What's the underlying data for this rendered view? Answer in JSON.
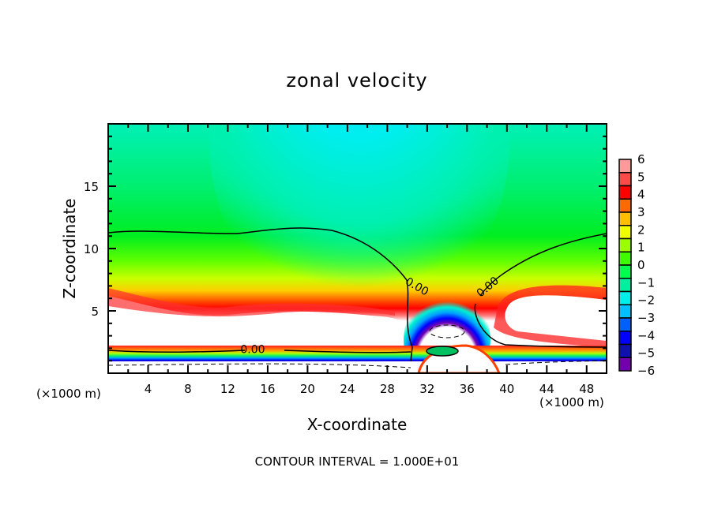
{
  "chart_data": {
    "type": "heatmap",
    "title": "zonal velocity",
    "xlabel": "X-coordinate",
    "ylabel": "Z-coordinate",
    "x_unit_label": "(×1000 m)",
    "y_unit_label": "(×1000 m)",
    "footer": "CONTOUR INTERVAL = 1.000E+01",
    "xlim": [
      0,
      50
    ],
    "ylim": [
      0,
      20
    ],
    "x_ticks": [
      4,
      8,
      12,
      16,
      20,
      24,
      28,
      32,
      36,
      40,
      44,
      48
    ],
    "x_tick_labels": [
      "4",
      "8",
      "12",
      "16",
      "20",
      "24",
      "28",
      "32",
      "36",
      "40",
      "44",
      "48"
    ],
    "y_ticks": [
      5,
      10,
      15
    ],
    "y_tick_labels": [
      "5",
      "10",
      "15"
    ],
    "colorbar": {
      "levels": [
        6,
        5,
        4,
        3,
        2,
        1,
        0,
        -1,
        -2,
        -3,
        -4,
        -5,
        -6
      ],
      "labels": [
        "6",
        "5",
        "4",
        "3",
        "2",
        "1",
        "0",
        "−1",
        "−2",
        "−3",
        "−4",
        "−5",
        "−6"
      ],
      "colors": [
        "#ff9a9a",
        "#ff4a4a",
        "#ff0000",
        "#ff6a00",
        "#ffbe00",
        "#f0ff00",
        "#9cff00",
        "#3cff00",
        "#00ff50",
        "#00f0a0",
        "#00f0e8",
        "#00c0ff",
        "#0060ff",
        "#0000ff",
        "#1010b0",
        "#7000b0"
      ],
      "placement": "right"
    },
    "contour_labels": [
      {
        "text": "0.00",
        "x": 14.5,
        "z": 1.6
      },
      {
        "text": "0.00",
        "x": 30.8,
        "z": 6.7
      },
      {
        "text": "0.00",
        "x": 38.3,
        "z": 6.7
      }
    ],
    "features": [
      {
        "name": "upper-zero-contour",
        "value": 0,
        "description": "zero contour near z≈11 km at left, descending toward x≈30 km; rising again from x≈37 km to z≈11 km at right"
      },
      {
        "name": "left-jet",
        "range": "u>6",
        "x": [
          0,
          30
        ],
        "z": [
          2.5,
          4.5
        ]
      },
      {
        "name": "right-jet",
        "range": "u>6",
        "x": [
          40,
          50
        ],
        "z": [
          3,
          5.5
        ]
      },
      {
        "name": "central-negative-core",
        "range": "u<-6",
        "x": [
          32,
          37
        ],
        "z": [
          2.8,
          4.6
        ]
      },
      {
        "name": "upper-negative-region",
        "range": "u≈-2 to -3",
        "x": [
          28,
          42
        ],
        "z": [
          8,
          20
        ]
      },
      {
        "name": "surface-layer",
        "range": "u<-6",
        "z": [
          0,
          1.2
        ]
      }
    ]
  }
}
